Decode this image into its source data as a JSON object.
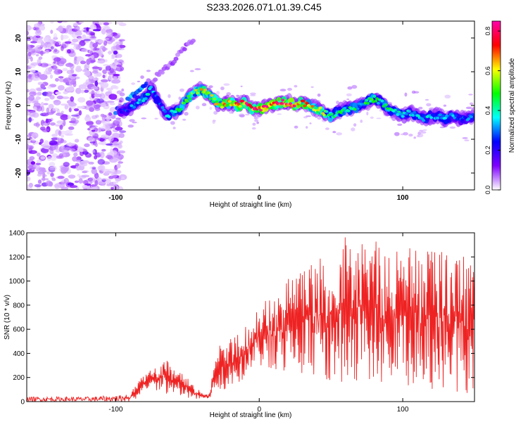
{
  "page_title": "S233.2026.071.01.39.C45",
  "chart_data": [
    {
      "type": "heatmap",
      "title": "S233.2026.071.01.39.C45",
      "xlabel": "Height of straight line (km)",
      "ylabel": "Frequency (Hz)",
      "xlim": [
        -162,
        150
      ],
      "ylim": [
        -25,
        25
      ],
      "x_ticks": [
        -100,
        0,
        100
      ],
      "y_ticks": [
        -20,
        -10,
        0,
        10,
        20
      ],
      "colorbar": {
        "label": "Normalized spectral amplitude",
        "range": [
          0.0,
          0.85
        ],
        "ticks": [
          0.0,
          0.2,
          0.4,
          0.6,
          0.8
        ],
        "stops": [
          "#ffffff",
          "#7f00ff",
          "#0000ff",
          "#00ffff",
          "#00ff00",
          "#ffff00",
          "#ff0000",
          "#ff00aa"
        ]
      },
      "noise_region": {
        "x_from": -162,
        "x_to": -95
      },
      "ridge": {
        "x": [
          -97,
          -90,
          -85,
          -80,
          -75,
          -70,
          -65,
          -60,
          -55,
          -50,
          -45,
          -40,
          -35,
          -30,
          -25,
          -20,
          -15,
          -10,
          -5,
          0,
          5,
          10,
          15,
          20,
          25,
          30,
          35,
          40,
          45,
          50,
          55,
          60,
          65,
          70,
          75,
          80,
          85,
          90,
          95,
          100,
          105,
          110,
          115,
          120,
          125,
          130,
          135,
          140,
          145,
          150
        ],
        "freq_hz": [
          -2,
          -1,
          1,
          2,
          5,
          1,
          -3,
          -2,
          -1,
          2,
          4,
          5,
          3,
          1,
          0,
          1,
          0,
          1,
          -1,
          -1,
          0,
          0,
          1,
          1,
          0,
          1,
          0,
          -1,
          -2,
          -3,
          -2,
          -1,
          -1,
          0,
          1,
          2,
          1,
          -1,
          -2,
          -3,
          -2,
          -3,
          -4,
          -3,
          -3,
          -4,
          -3,
          -4,
          -4,
          -3
        ],
        "amplitude": [
          0.2,
          0.3,
          0.35,
          0.4,
          0.35,
          0.3,
          0.35,
          0.4,
          0.45,
          0.5,
          0.55,
          0.6,
          0.55,
          0.6,
          0.65,
          0.7,
          0.75,
          0.75,
          0.8,
          0.8,
          0.8,
          0.75,
          0.8,
          0.85,
          0.75,
          0.7,
          0.65,
          0.6,
          0.55,
          0.5,
          0.45,
          0.45,
          0.45,
          0.4,
          0.45,
          0.45,
          0.4,
          0.45,
          0.4,
          0.4,
          0.35,
          0.4,
          0.35,
          0.35,
          0.3,
          0.35,
          0.35,
          0.3,
          0.3,
          0.3
        ]
      },
      "side_branch": {
        "x": [
          -100,
          -90,
          -80,
          -70,
          -60,
          -55,
          -50,
          -45
        ],
        "freq_hz": [
          -2,
          2,
          6,
          9,
          13,
          16,
          18,
          20
        ]
      }
    },
    {
      "type": "line",
      "xlabel": "Height of straight line (km)",
      "ylabel": "SNR (10 * v/v)",
      "xlim": [
        -162,
        150
      ],
      "ylim": [
        0,
        1400
      ],
      "x_ticks": [
        -100,
        0,
        100
      ],
      "y_ticks": [
        0,
        200,
        400,
        600,
        800,
        1000,
        1200,
        1400
      ],
      "series": [
        {
          "name": "SNR",
          "color": "#ee2222",
          "envelope_x": [
            -162,
            -140,
            -120,
            -100,
            -90,
            -85,
            -80,
            -75,
            -70,
            -65,
            -60,
            -55,
            -50,
            -45,
            -40,
            -35,
            -30,
            -25,
            -20,
            -15,
            -10,
            -5,
            0,
            5,
            10,
            15,
            20,
            25,
            30,
            35,
            40,
            45,
            50,
            55,
            60,
            65,
            70,
            75,
            80,
            85,
            90,
            95,
            100,
            105,
            110,
            115,
            120,
            125,
            130,
            135,
            140,
            145,
            150
          ],
          "envelope_max": [
            40,
            40,
            40,
            50,
            60,
            180,
            230,
            270,
            320,
            370,
            300,
            250,
            200,
            120,
            80,
            60,
            430,
            500,
            540,
            600,
            650,
            700,
            780,
            860,
            900,
            950,
            1050,
            1080,
            1100,
            1150,
            1180,
            1200,
            1250,
            1280,
            1380,
            1320,
            1350,
            1300,
            1400,
            1350,
            1300,
            1380,
            1250,
            1300,
            1280,
            1270,
            1260,
            1250,
            1270,
            1260,
            1240,
            1230,
            1220
          ],
          "envelope_min": [
            0,
            0,
            0,
            0,
            0,
            20,
            60,
            80,
            80,
            60,
            50,
            40,
            20,
            20,
            20,
            20,
            80,
            100,
            120,
            150,
            200,
            260,
            280,
            280,
            250,
            230,
            220,
            240,
            200,
            230,
            220,
            200,
            160,
            150,
            140,
            150,
            150,
            140,
            140,
            130,
            120,
            130,
            120,
            110,
            100,
            110,
            100,
            90,
            90,
            80,
            80,
            70,
            60
          ]
        }
      ]
    }
  ]
}
